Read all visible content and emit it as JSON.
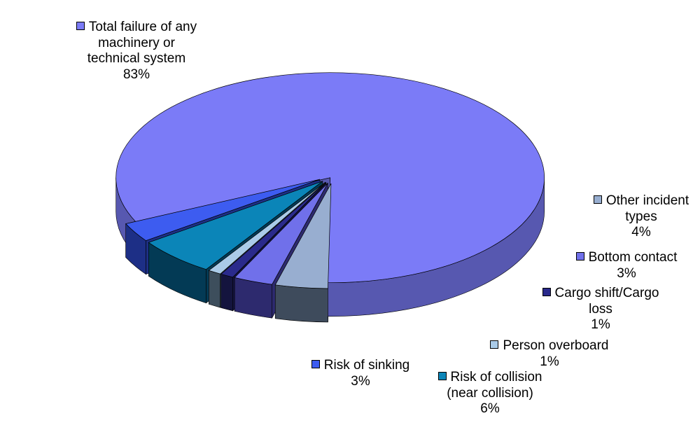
{
  "chart_data": {
    "type": "pie",
    "style": "3d-exploded",
    "slices": [
      {
        "label_lines": [
          "Total failure of any",
          "machinery or",
          "technical system"
        ],
        "pct": "83%",
        "value": 83,
        "color": "#7b7bf7",
        "dark": "#5758b0"
      },
      {
        "label_lines": [
          "Other incident",
          "types"
        ],
        "pct": "4%",
        "value": 4,
        "color": "#98aed0",
        "dark": "#3e4b5c"
      },
      {
        "label_lines": [
          "Bottom contact"
        ],
        "pct": "3%",
        "value": 3,
        "color": "#7070ea",
        "dark": "#2d2a6e"
      },
      {
        "label_lines": [
          "Cargo shift/Cargo",
          "loss"
        ],
        "pct": "1%",
        "value": 1,
        "color": "#2a2a8c",
        "dark": "#14143e"
      },
      {
        "label_lines": [
          "Person overboard"
        ],
        "pct": "1%",
        "value": 1,
        "color": "#aacbe8",
        "dark": "#3d4e5c"
      },
      {
        "label_lines": [
          "Risk of collision",
          "(near collision)"
        ],
        "pct": "6%",
        "value": 6,
        "color": "#0b85b8",
        "dark": "#033a55"
      },
      {
        "label_lines": [
          "Risk of sinking"
        ],
        "pct": "3%",
        "value": 3,
        "color": "#3d5cf0",
        "dark": "#1d2f86"
      }
    ],
    "legend": "none"
  }
}
